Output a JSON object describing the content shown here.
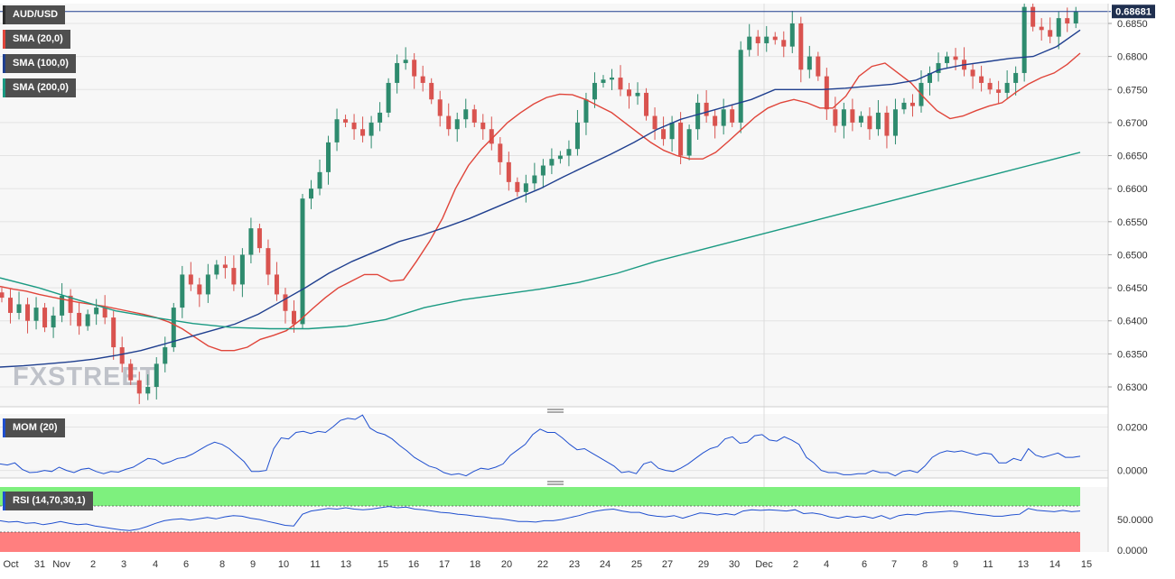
{
  "symbol": "AUD/USD",
  "last_price": "0.68681",
  "watermark": "FXSTREET",
  "indicators": [
    {
      "label": "SMA (20,0)",
      "color": "#e0453a"
    },
    {
      "label": "SMA (100,0)",
      "color": "#1f3f8f"
    },
    {
      "label": "SMA (200,0)",
      "color": "#1a9a82"
    }
  ],
  "mom_label": "MOM (20)",
  "rsi_label": "RSI (14,70,30,1)",
  "colors": {
    "bull": "#2e8b6e",
    "bear": "#d9534f",
    "rsi_upper": "#7ef07e",
    "rsi_lower": "#ff7f7f",
    "osc": "#1f4fcf",
    "price_line": "#1f3f8f"
  },
  "chart_data": [
    {
      "type": "candlestick",
      "title": "AUD/USD",
      "x_tick_labels": [
        "Oct",
        "31",
        "Nov",
        "2",
        "3",
        "4",
        "6",
        "8",
        "9",
        "10",
        "11",
        "13",
        "15",
        "16",
        "17",
        "18",
        "20",
        "22",
        "23",
        "24",
        "25",
        "27",
        "29",
        "30",
        "Dec",
        "2",
        "4",
        "6",
        "7",
        "8",
        "9",
        "11",
        "13",
        "14",
        "15"
      ],
      "y_tick_labels": [
        "0.6300",
        "0.6350",
        "0.6400",
        "0.6450",
        "0.6500",
        "0.6550",
        "0.6600",
        "0.6650",
        "0.6700",
        "0.6750",
        "0.6800",
        "0.6850"
      ],
      "ylim": [
        0.627,
        0.688
      ],
      "current_price": 0.68681,
      "close_series": [
        0.6435,
        0.6412,
        0.6425,
        0.64,
        0.642,
        0.639,
        0.6408,
        0.6438,
        0.6412,
        0.6392,
        0.641,
        0.642,
        0.6405,
        0.636,
        0.6335,
        0.631,
        0.629,
        0.63,
        0.6335,
        0.636,
        0.642,
        0.647,
        0.6455,
        0.644,
        0.647,
        0.6485,
        0.648,
        0.6455,
        0.65,
        0.654,
        0.651,
        0.647,
        0.644,
        0.6415,
        0.6395,
        0.6585,
        0.66,
        0.6625,
        0.667,
        0.6705,
        0.67,
        0.669,
        0.668,
        0.67,
        0.6715,
        0.676,
        0.679,
        0.6795,
        0.677,
        0.676,
        0.6735,
        0.671,
        0.669,
        0.6705,
        0.672,
        0.67,
        0.669,
        0.6668,
        0.664,
        0.661,
        0.6595,
        0.6608,
        0.662,
        0.6635,
        0.6645,
        0.665,
        0.666,
        0.67,
        0.6735,
        0.676,
        0.6765,
        0.6768,
        0.675,
        0.674,
        0.6745,
        0.671,
        0.669,
        0.6675,
        0.67,
        0.665,
        0.669,
        0.673,
        0.671,
        0.6695,
        0.672,
        0.67,
        0.681,
        0.683,
        0.682,
        0.683,
        0.6825,
        0.6815,
        0.685,
        0.678,
        0.68,
        0.677,
        0.672,
        0.6695,
        0.672,
        0.67,
        0.671,
        0.669,
        0.6715,
        0.668,
        0.672,
        0.673,
        0.6725,
        0.676,
        0.6775,
        0.679,
        0.68,
        0.6795,
        0.678,
        0.677,
        0.676,
        0.675,
        0.6745,
        0.676,
        0.6775,
        0.6875,
        0.6845,
        0.684,
        0.683,
        0.6858,
        0.685,
        0.6868
      ],
      "series": [
        {
          "name": "SMA (20,0)",
          "values": [
            0.6452,
            0.6448,
            0.6445,
            0.644,
            0.6436,
            0.6432,
            0.6428,
            0.6425,
            0.6422,
            0.6418,
            0.6414,
            0.641,
            0.6405,
            0.6398,
            0.6388,
            0.6375,
            0.6362,
            0.6355,
            0.6355,
            0.636,
            0.6372,
            0.6378,
            0.6385,
            0.64,
            0.6418,
            0.6435,
            0.645,
            0.646,
            0.647,
            0.647,
            0.646,
            0.6462,
            0.649,
            0.652,
            0.6555,
            0.66,
            0.6635,
            0.666,
            0.668,
            0.67,
            0.6715,
            0.6728,
            0.6738,
            0.6743,
            0.6742,
            0.6735,
            0.6725,
            0.6715,
            0.67,
            0.6685,
            0.667,
            0.6658,
            0.665,
            0.6645,
            0.6645,
            0.6655,
            0.6672,
            0.669,
            0.6708,
            0.6722,
            0.673,
            0.6735,
            0.673,
            0.6722,
            0.6722,
            0.674,
            0.677,
            0.6785,
            0.679,
            0.6775,
            0.676,
            0.6738,
            0.6718,
            0.6706,
            0.671,
            0.6718,
            0.6725,
            0.673,
            0.6745,
            0.6758,
            0.6768,
            0.6775,
            0.6788,
            0.6805
          ]
        },
        {
          "name": "SMA (100,0)",
          "values": [
            0.633,
            0.6332,
            0.6335,
            0.6338,
            0.6342,
            0.6348,
            0.6355,
            0.6365,
            0.6375,
            0.6385,
            0.6395,
            0.641,
            0.643,
            0.645,
            0.6472,
            0.649,
            0.6505,
            0.652,
            0.653,
            0.6542,
            0.6555,
            0.657,
            0.6585,
            0.66,
            0.6618,
            0.6635,
            0.6652,
            0.667,
            0.669,
            0.6705,
            0.6715,
            0.6725,
            0.6735,
            0.675,
            0.675,
            0.675,
            0.6752,
            0.6755,
            0.6758,
            0.6764,
            0.678,
            0.6787,
            0.6792,
            0.6797,
            0.68,
            0.6815,
            0.684
          ]
        },
        {
          "name": "SMA (200,0)",
          "values": [
            0.6465,
            0.645,
            0.6432,
            0.6415,
            0.6405,
            0.6396,
            0.639,
            0.6388,
            0.6388,
            0.6392,
            0.6402,
            0.642,
            0.6432,
            0.644,
            0.6448,
            0.6458,
            0.6472,
            0.649,
            0.6505,
            0.652,
            0.6535,
            0.655,
            0.6565,
            0.658,
            0.6595,
            0.661,
            0.6625,
            0.664,
            0.6655
          ]
        }
      ]
    },
    {
      "type": "line",
      "title": "MOM (20)",
      "y_tick_labels": [
        "0.0200",
        "0.0000"
      ],
      "ylim": [
        -0.0035,
        0.026
      ],
      "values": [
        0.003,
        0.0025,
        0.0035,
        0.0005,
        -0.001,
        -0.0008,
        0.0,
        -0.0005,
        0.0015,
        0.0,
        -0.001,
        0.0005,
        0.001,
        -0.0005,
        -0.0015,
        -0.0005,
        -0.0008,
        0.0005,
        0.0015,
        0.0035,
        0.0055,
        0.005,
        0.003,
        0.004,
        0.0055,
        0.006,
        0.0075,
        0.0095,
        0.0115,
        0.013,
        0.012,
        0.01,
        0.007,
        0.004,
        -0.0005,
        -0.0005,
        0.0,
        0.01,
        0.015,
        0.0145,
        0.0175,
        0.018,
        0.017,
        0.018,
        0.0175,
        0.02,
        0.023,
        0.024,
        0.0235,
        0.0255,
        0.0195,
        0.0175,
        0.0165,
        0.0145,
        0.0115,
        0.009,
        0.006,
        0.004,
        0.002,
        0.001,
        -0.001,
        -0.002,
        -0.0015,
        -0.0025,
        -0.0005,
        0.001,
        0.0005,
        0.0015,
        0.003,
        0.007,
        0.0095,
        0.012,
        0.0165,
        0.019,
        0.0175,
        0.0175,
        0.015,
        0.012,
        0.0095,
        0.01,
        0.008,
        0.006,
        0.004,
        0.002,
        -0.001,
        -0.0005,
        -0.0015,
        0.003,
        0.004,
        0.001,
        0.0,
        -0.0005,
        0.001,
        0.003,
        0.0055,
        0.008,
        0.01,
        0.011,
        0.0145,
        0.0155,
        0.0125,
        0.013,
        0.016,
        0.0165,
        0.014,
        0.0135,
        0.0155,
        0.014,
        0.012,
        0.006,
        0.0035,
        0.0,
        -0.001,
        -0.001,
        -0.002,
        -0.002,
        -0.0015,
        -0.0015,
        0.0,
        -0.001,
        -0.001,
        -0.0025,
        -0.0005,
        0.0,
        -0.001,
        0.002,
        0.006,
        0.008,
        0.009,
        0.0085,
        0.009,
        0.008,
        0.007,
        0.008,
        0.0075,
        0.0035,
        0.0035,
        0.0055,
        0.0045,
        0.01,
        0.007,
        0.006,
        0.007,
        0.008,
        0.006,
        0.006,
        0.0065
      ]
    },
    {
      "type": "line",
      "title": "RSI (14,70,30,1)",
      "y_tick_labels": [
        "50.0000",
        "0.0000"
      ],
      "ylim": [
        0,
        100
      ],
      "overbought": 70,
      "oversold": 30,
      "values": [
        48,
        46,
        47,
        44,
        45,
        42,
        44,
        47,
        44,
        42,
        43,
        40,
        38,
        36,
        34,
        33,
        35,
        39,
        44,
        48,
        50,
        51,
        49,
        51,
        53,
        51,
        54,
        56,
        55,
        52,
        50,
        47,
        44,
        41,
        40,
        58,
        63,
        65,
        67,
        66,
        68,
        66,
        65,
        66,
        68,
        70,
        68,
        69,
        66,
        65,
        63,
        61,
        60,
        58,
        57,
        55,
        54,
        52,
        51,
        49,
        47,
        47,
        46,
        48,
        48,
        50,
        53,
        56,
        60,
        63,
        65,
        66,
        63,
        61,
        61,
        57,
        55,
        54,
        56,
        52,
        56,
        60,
        59,
        57,
        59,
        57,
        63,
        65,
        64,
        65,
        64,
        63,
        65,
        59,
        60,
        58,
        54,
        52,
        55,
        53,
        55,
        52,
        56,
        51,
        56,
        58,
        57,
        60,
        61,
        62,
        63,
        62,
        60,
        58,
        57,
        55,
        55,
        57,
        58,
        67,
        64,
        63,
        62,
        64,
        62,
        63
      ]
    }
  ]
}
